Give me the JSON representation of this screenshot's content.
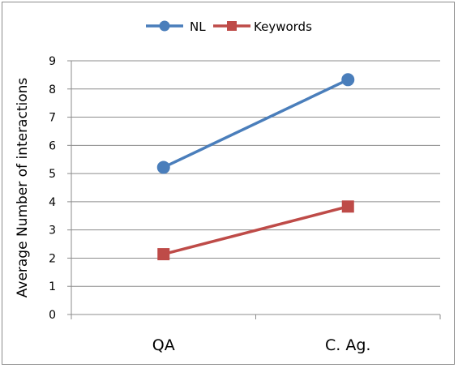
{
  "chart_data": {
    "type": "line",
    "categories": [
      "QA",
      "C. Ag."
    ],
    "series": [
      {
        "name": "NL",
        "values": [
          5.22,
          8.33
        ],
        "color": "#4a7ebb",
        "marker": "circle"
      },
      {
        "name": "Keywords",
        "values": [
          2.14,
          3.83
        ],
        "color": "#be4b48",
        "marker": "square"
      }
    ],
    "title": "",
    "xlabel": "",
    "ylabel": "Average Number of interactions",
    "ylim": [
      0,
      9
    ],
    "yticks": [
      "0",
      "1",
      "2",
      "3",
      "4",
      "5",
      "6",
      "7",
      "8",
      "9"
    ],
    "grid": true,
    "legend": "top"
  }
}
